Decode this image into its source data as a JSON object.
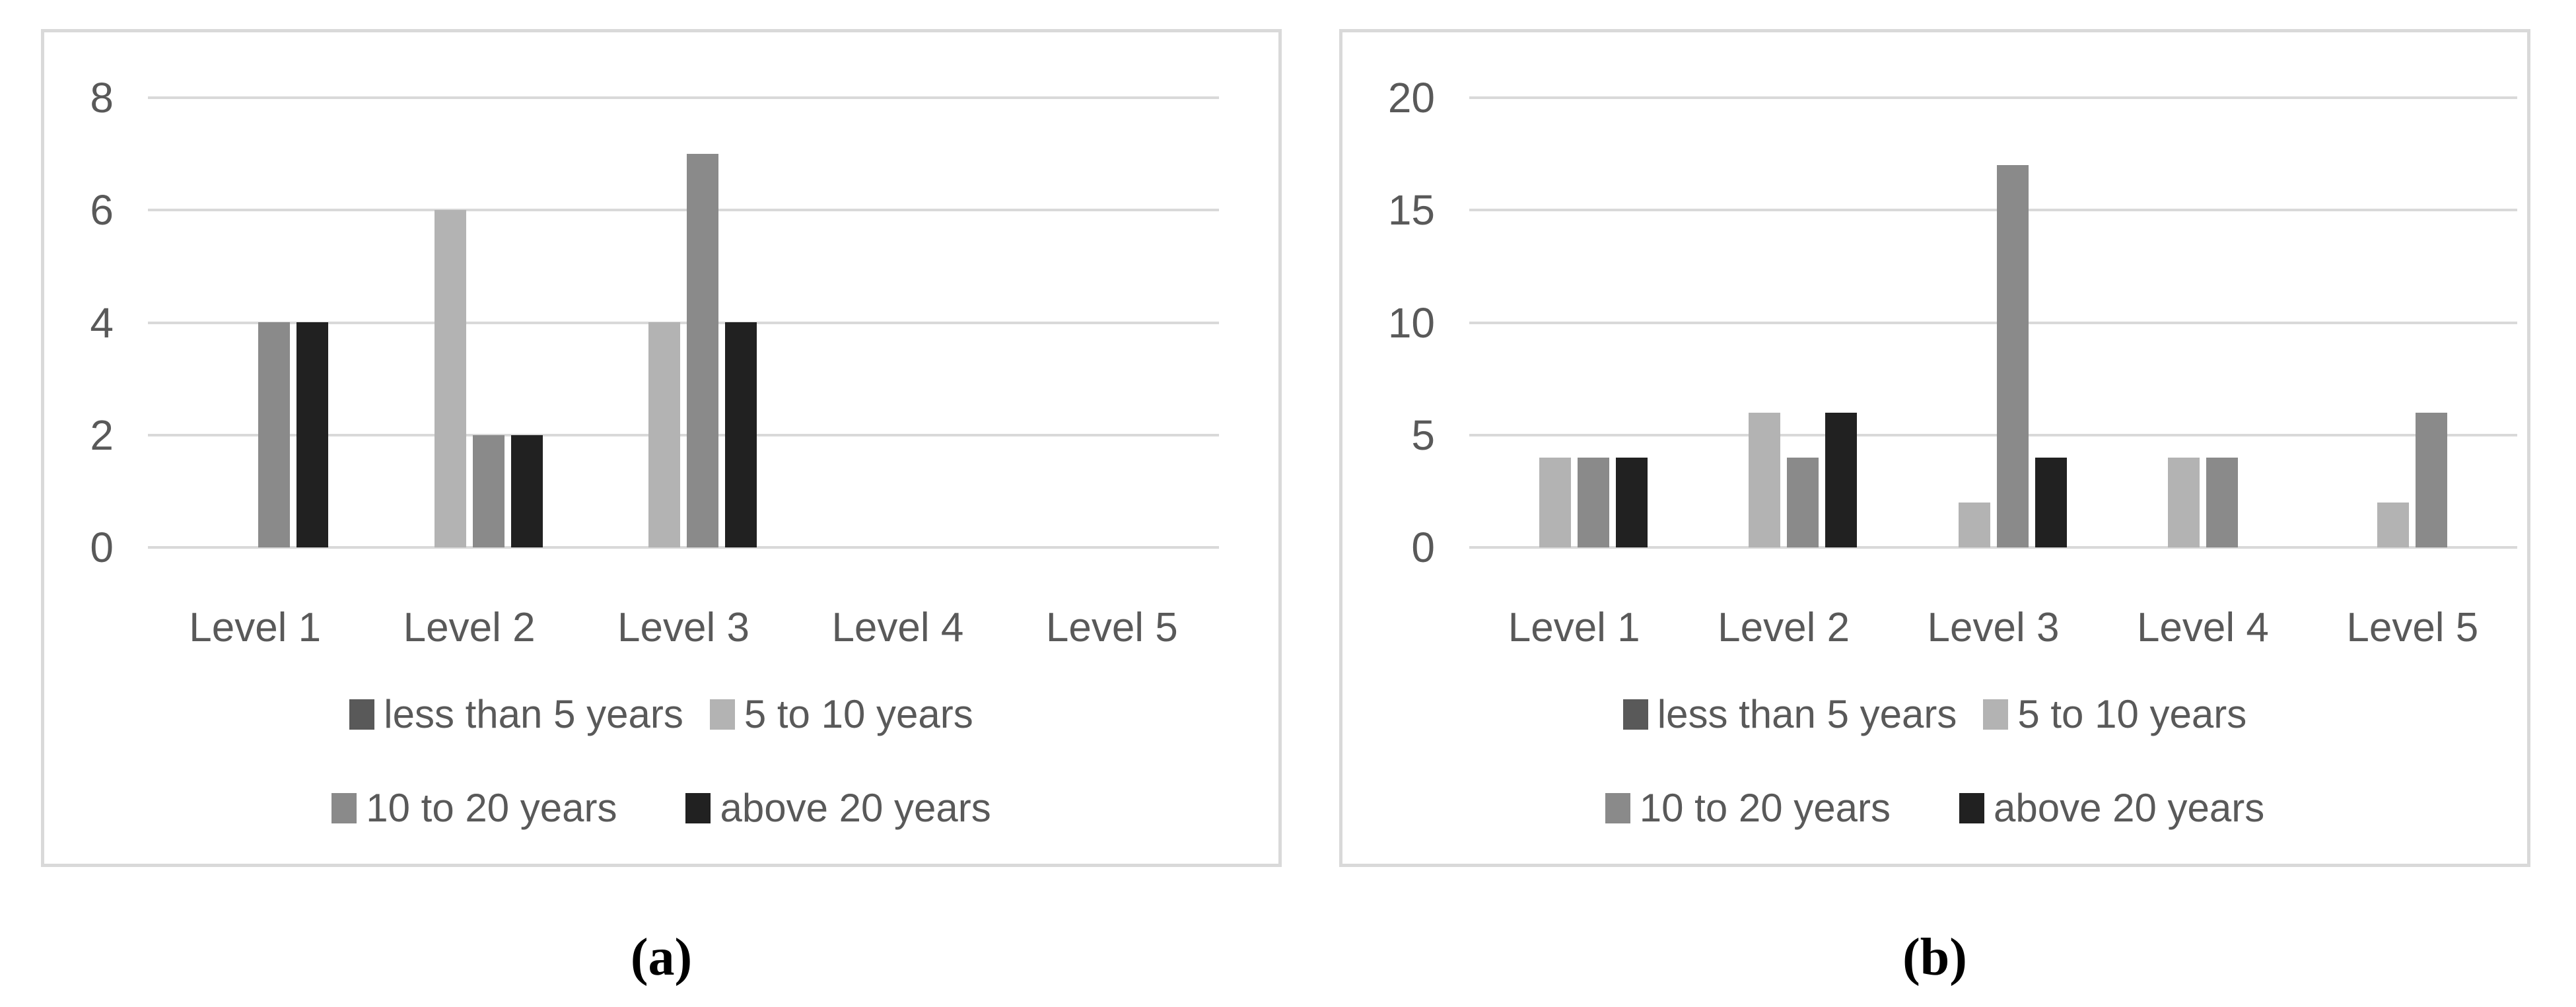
{
  "figure_type": "two-panel clustered bar figure",
  "colors": {
    "background": "#ffffff",
    "panel_border": "#d9d9d9",
    "gridline": "#d9d9d9",
    "text": "#595959",
    "caption_text": "#000000"
  },
  "chart_data": [
    {
      "type": "bar",
      "panel_caption": "(a)",
      "title": "",
      "xlabel": "",
      "ylabel": "",
      "categories": [
        "Level 1",
        "Level 2",
        "Level 3",
        "Level 4",
        "Level 5"
      ],
      "series": [
        {
          "name": "less than 5 years",
          "color": "#595959",
          "values": [
            0,
            0,
            0,
            0,
            0
          ]
        },
        {
          "name": "5 to 10 years",
          "color": "#b3b3b3",
          "values": [
            0,
            6,
            4,
            0,
            0
          ]
        },
        {
          "name": "10 to 20 years",
          "color": "#8a8a8a",
          "values": [
            4,
            2,
            7,
            0,
            0
          ]
        },
        {
          "name": "above 20 years",
          "color": "#212121",
          "values": [
            4,
            2,
            4,
            0,
            0
          ]
        }
      ],
      "ylim": [
        0,
        8
      ],
      "yticks": [
        8,
        6,
        4,
        2,
        0
      ],
      "grid": true,
      "legend_position": "bottom",
      "legend_rows": [
        [
          "less than 5 years",
          "5 to 10 years"
        ],
        [
          "10 to 20 years",
          "above 20 years"
        ]
      ]
    },
    {
      "type": "bar",
      "panel_caption": "(b)",
      "title": "",
      "xlabel": "",
      "ylabel": "",
      "categories": [
        "Level 1",
        "Level 2",
        "Level 3",
        "Level 4",
        "Level 5"
      ],
      "series": [
        {
          "name": "less than 5 years",
          "color": "#595959",
          "values": [
            0,
            0,
            0,
            0,
            0
          ]
        },
        {
          "name": "5 to 10 years",
          "color": "#b3b3b3",
          "values": [
            4,
            6,
            2,
            4,
            2
          ]
        },
        {
          "name": "10 to 20 years",
          "color": "#8a8a8a",
          "values": [
            4,
            4,
            17,
            4,
            6
          ]
        },
        {
          "name": "above 20 years",
          "color": "#212121",
          "values": [
            4,
            6,
            4,
            0,
            0
          ]
        }
      ],
      "ylim": [
        0,
        20
      ],
      "yticks": [
        20,
        15,
        10,
        5,
        0
      ],
      "grid": true,
      "legend_position": "bottom",
      "legend_rows": [
        [
          "less than 5 years",
          "5 to 10 years"
        ],
        [
          "10 to 20 years",
          "above 20 years"
        ]
      ]
    }
  ]
}
